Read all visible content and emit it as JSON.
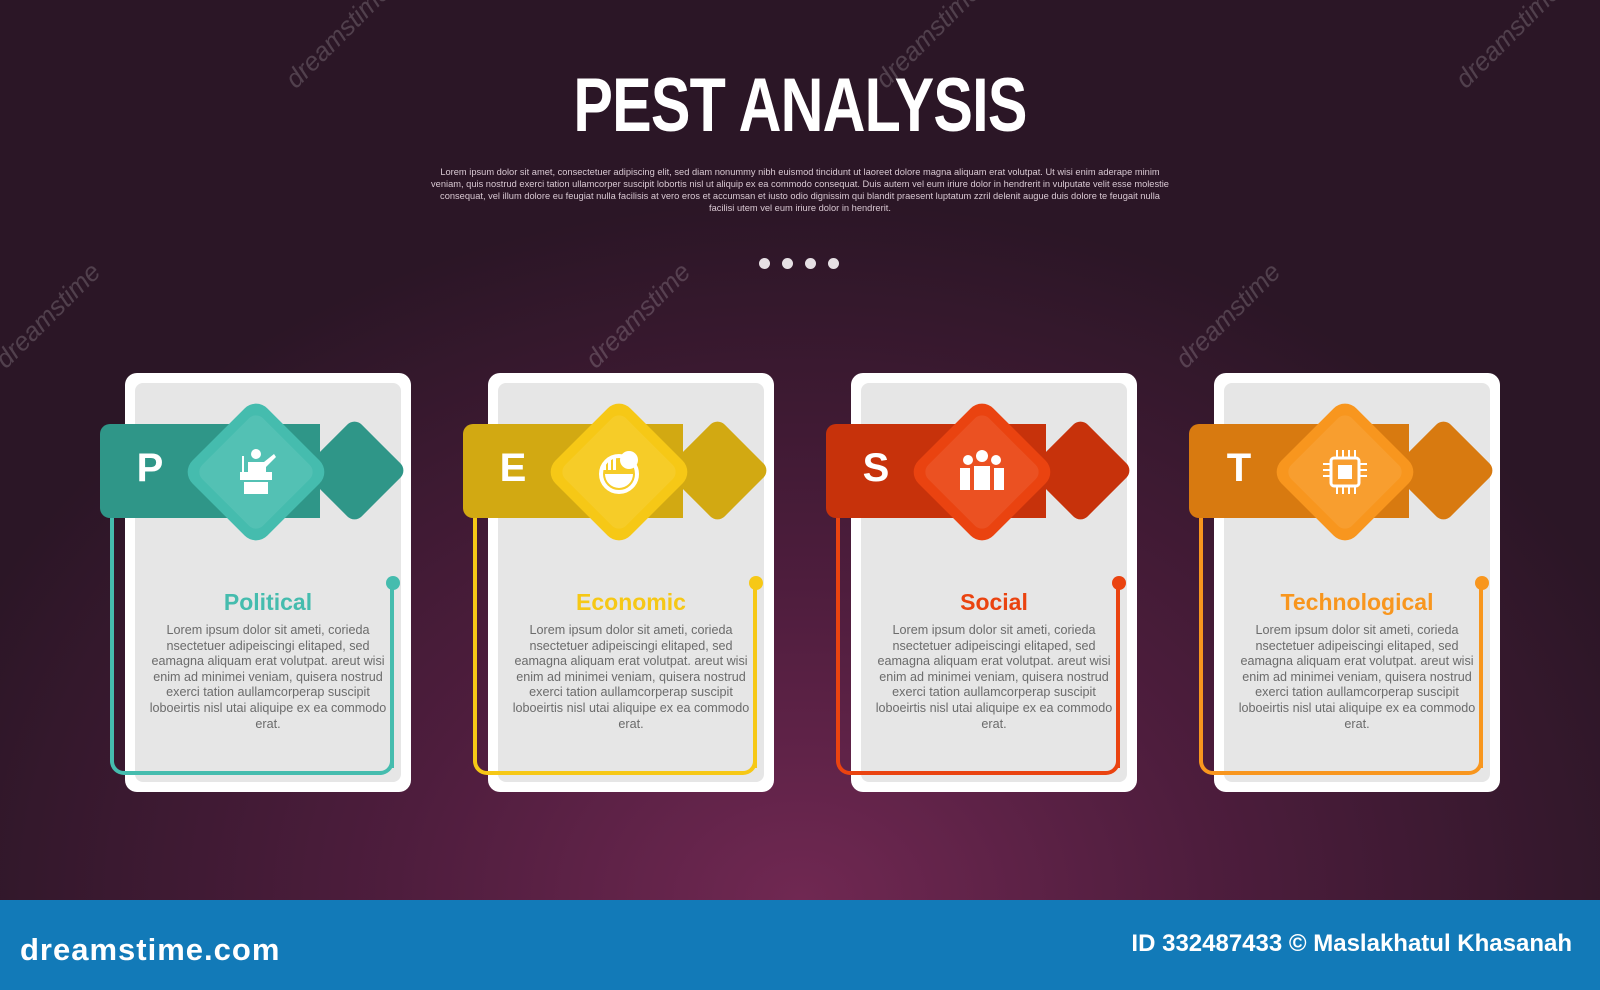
{
  "title": "PEST ANALYSIS",
  "subtitle": "Lorem ipsum dolor sit amet, consectetuer adipiscing elit, sed diam nonummy nibh euismod tincidunt ut laoreet dolore magna aliquam erat volutpat. Ut wisi enim aderape minim veniam, quis nostrud exerci tation ullamcorper suscipit lobortis nisl ut aliquip ex ea commodo consequat. Duis autem vel eum iriure dolor in hendrerit in vulputate velit esse molestie consequat, vel illum dolore eu feugiat nulla facilisis at vero eros et accumsan et iusto odio dignissim qui blandit praesent luptatum zzril delenit augue duis dolore te feugait nulla facilisi utem vel eum iriure dolor in hendrerit.",
  "cards": [
    {
      "letter": "P",
      "title": "Political",
      "icon": "podium-speaker-icon",
      "color": "#45bcae",
      "dark": "#2f9688",
      "body": "Lorem ipsum dolor sit ameti, corieda nsectetuer adipeiscingi elitaped, sed eamagna aliquam erat volutpat. areut wisi enim ad minimei veniam, quisera nostrud exerci tation aullamcorperap suscipit loboeirtis nisl utai aliquipe ex ea commodo erat."
    },
    {
      "letter": "E",
      "title": "Economic",
      "icon": "money-globe-icon",
      "color": "#f6c816",
      "dark": "#d2a912",
      "body": "Lorem ipsum dolor sit ameti, corieda nsectetuer adipeiscingi elitaped, sed eamagna aliquam erat volutpat. areut wisi enim ad minimei veniam, quisera nostrud exerci tation aullamcorperap suscipit loboeirtis nisl utai aliquipe ex ea commodo erat."
    },
    {
      "letter": "S",
      "title": "Social",
      "icon": "people-group-icon",
      "color": "#ea4310",
      "dark": "#c7320b",
      "body": "Lorem ipsum dolor sit ameti, corieda nsectetuer adipeiscingi elitaped, sed eamagna aliquam erat volutpat. areut wisi enim ad minimei veniam, quisera nostrud exerci tation aullamcorperap suscipit loboeirtis nisl utai aliquipe ex ea commodo erat."
    },
    {
      "letter": "T",
      "title": "Technological",
      "icon": "microchip-icon",
      "color": "#f8961e",
      "dark": "#d87a10",
      "body": "Lorem ipsum dolor sit ameti, corieda nsectetuer adipeiscingi elitaped, sed eamagna aliquam erat volutpat. areut wisi enim ad minimei veniam, quisera nostrud exerci tation aullamcorperap suscipit loboeirtis nisl utai aliquipe ex ea commodo erat."
    }
  ],
  "watermark": "dreamstime",
  "footer": {
    "brand": "dreamstime.com",
    "credit": "ID 332487433 © Maslakhatul Khasanah",
    "color": "#127ab8"
  }
}
